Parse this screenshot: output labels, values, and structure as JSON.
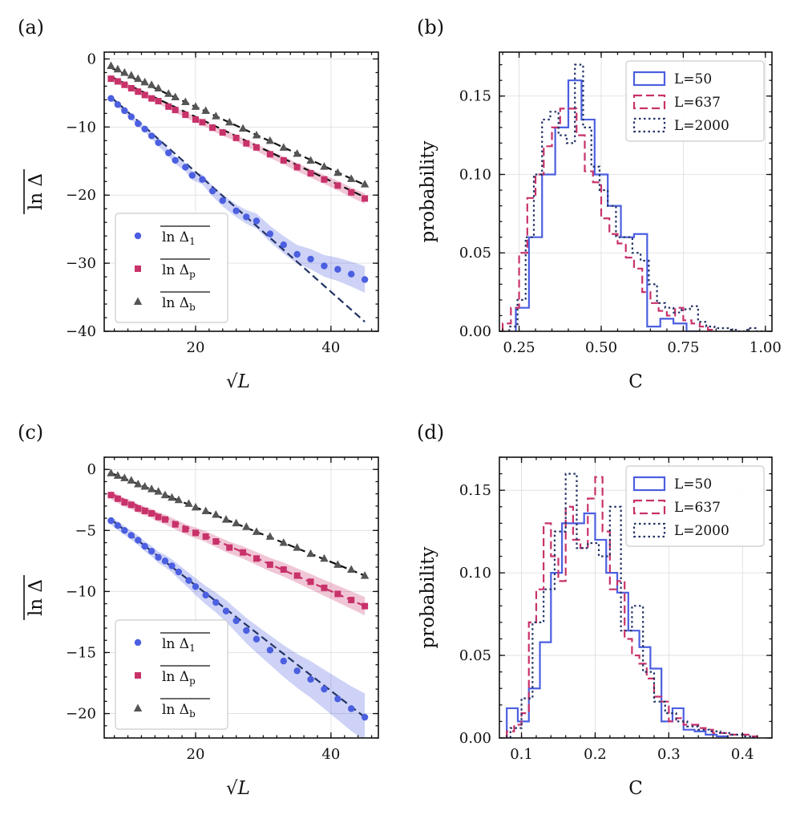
{
  "chart_data": [
    {
      "id": "a",
      "type": "scatter",
      "panel_label": "(a)",
      "xlabel": "√L",
      "ylabel": "ln Δ",
      "xlim": [
        6.5,
        47
      ],
      "ylim": [
        -40,
        1
      ],
      "xticks": [
        20,
        40
      ],
      "yticks": [
        0,
        -10,
        -20,
        -30,
        -40
      ],
      "xtick_labels": [
        "20",
        "40"
      ],
      "ytick_labels": [
        "0",
        "−10",
        "−20",
        "−30",
        "−40"
      ],
      "grid": true,
      "legend": "bottom-left",
      "series": [
        {
          "name": "ln Δ",
          "subscript": "1",
          "marker": "circle",
          "color": "#4b5fe0",
          "band": true,
          "fit": {
            "x": [
              7.5,
              45
            ],
            "y": [
              -5.6,
              -38.6
            ],
            "color": "#223366"
          },
          "x": [
            7.5,
            8.5,
            9.5,
            10.5,
            11.5,
            12.5,
            13.5,
            14.5,
            16,
            17,
            18.5,
            19.5,
            21,
            22.5,
            24,
            26,
            27.5,
            29,
            31,
            33,
            35,
            37,
            39,
            41,
            43,
            45
          ],
          "y": [
            -5.8,
            -6.7,
            -7.6,
            -8.5,
            -9.5,
            -10.3,
            -11.3,
            -12.3,
            -13.8,
            -14.9,
            -15.9,
            -17.1,
            -17.7,
            -19.4,
            -20.8,
            -22.3,
            -23.2,
            -23.8,
            -25.7,
            -27.3,
            -28.7,
            -29.4,
            -30.4,
            -30.9,
            -31.6,
            -32.4
          ]
        },
        {
          "name": "ln Δ",
          "subscript": "p",
          "marker": "square",
          "color": "#c8326a",
          "band": true,
          "fit": {
            "x": [
              7.5,
              45
            ],
            "y": [
              -2.6,
              -20.3
            ],
            "color": "#111111"
          },
          "x": [
            7.5,
            8.5,
            9.5,
            10.5,
            11.5,
            12.5,
            13.5,
            14.5,
            16,
            17,
            18.5,
            20,
            21,
            22.5,
            24,
            26,
            27.5,
            29,
            31,
            33,
            35,
            37,
            39,
            41,
            43,
            45
          ],
          "y": [
            -2.9,
            -3.3,
            -3.8,
            -4.3,
            -4.8,
            -5.3,
            -5.8,
            -6.2,
            -7.0,
            -7.5,
            -8.2,
            -8.9,
            -9.3,
            -10.1,
            -10.8,
            -11.6,
            -12.4,
            -13.0,
            -14.0,
            -14.9,
            -15.9,
            -16.8,
            -17.7,
            -18.6,
            -19.6,
            -20.5
          ]
        },
        {
          "name": "ln Δ",
          "subscript": "b",
          "marker": "triangle",
          "color": "#555555",
          "band": false,
          "fit": {
            "x": [
              7.5,
              45
            ],
            "y": [
              -1.3,
              -18.5
            ],
            "color": "#111111"
          },
          "x": [
            7.5,
            8.5,
            9.5,
            10.5,
            11.5,
            12.5,
            13.5,
            14.5,
            16,
            17,
            18.5,
            20,
            21.5,
            23,
            25,
            27,
            29,
            31,
            33,
            35,
            37,
            39,
            41,
            43,
            45
          ],
          "y": [
            -1.0,
            -1.5,
            -2.0,
            -2.4,
            -2.9,
            -3.4,
            -3.8,
            -4.3,
            -5.1,
            -5.6,
            -6.3,
            -7.0,
            -7.6,
            -8.4,
            -9.3,
            -10.2,
            -11.2,
            -12.0,
            -13.0,
            -13.9,
            -14.9,
            -15.8,
            -16.7,
            -17.6,
            -18.4
          ]
        }
      ]
    },
    {
      "id": "b",
      "type": "histogram",
      "panel_label": "(b)",
      "xlabel": "C",
      "ylabel": "probability",
      "xlim": [
        0.19,
        1.02
      ],
      "ylim": [
        0,
        0.178
      ],
      "xticks": [
        0.25,
        0.5,
        0.75,
        1.0
      ],
      "yticks": [
        0,
        0.05,
        0.1,
        0.15
      ],
      "xtick_labels": [
        "0.25",
        "0.50",
        "0.75",
        "1.00"
      ],
      "ytick_labels": [
        "0.00",
        "0.05",
        "0.10",
        "0.15"
      ],
      "grid": true,
      "legend": "top-right",
      "series": [
        {
          "name": "L=50",
          "style": "solid",
          "color": "#4b5fe0",
          "edges": [
            0.24,
            0.28,
            0.32,
            0.36,
            0.4,
            0.44,
            0.48,
            0.52,
            0.56,
            0.6,
            0.64,
            0.68,
            0.72,
            0.76,
            0.8
          ],
          "values": [
            0.015,
            0.06,
            0.1,
            0.13,
            0.16,
            0.135,
            0.1,
            0.08,
            0.06,
            0.062,
            0.003,
            0.008,
            0.005,
            0.0
          ]
        },
        {
          "name": "L=637",
          "style": "dashed",
          "color": "#c8326a",
          "edges": [
            0.2,
            0.225,
            0.25,
            0.275,
            0.3,
            0.325,
            0.35,
            0.375,
            0.4,
            0.425,
            0.45,
            0.475,
            0.5,
            0.525,
            0.55,
            0.575,
            0.6,
            0.625,
            0.65,
            0.675,
            0.7,
            0.725,
            0.75,
            0.775,
            0.8,
            0.825,
            0.85
          ],
          "values": [
            0.005,
            0.015,
            0.05,
            0.085,
            0.1,
            0.118,
            0.13,
            0.142,
            0.142,
            0.125,
            0.102,
            0.095,
            0.072,
            0.062,
            0.056,
            0.047,
            0.04,
            0.025,
            0.018,
            0.013,
            0.01,
            0.015,
            0.007,
            0.005,
            0.003,
            0.001
          ]
        },
        {
          "name": "L=2000",
          "style": "dotted",
          "color": "#223366",
          "edges": [
            0.22,
            0.245,
            0.27,
            0.295,
            0.32,
            0.345,
            0.37,
            0.395,
            0.42,
            0.445,
            0.47,
            0.495,
            0.52,
            0.545,
            0.57,
            0.595,
            0.62,
            0.645,
            0.67,
            0.695,
            0.72,
            0.745,
            0.77,
            0.795,
            0.82,
            0.845,
            0.87,
            0.895,
            0.92,
            0.945,
            0.97,
            0.995
          ],
          "values": [
            0.003,
            0.02,
            0.06,
            0.1,
            0.135,
            0.14,
            0.125,
            0.12,
            0.17,
            0.13,
            0.105,
            0.09,
            0.08,
            0.06,
            0.06,
            0.05,
            0.045,
            0.03,
            0.018,
            0.015,
            0.012,
            0.014,
            0.016,
            0.006,
            0.003,
            0.002,
            0.002,
            0.001,
            0.0,
            0.002,
            0.0
          ]
        }
      ]
    },
    {
      "id": "c",
      "type": "scatter",
      "panel_label": "(c)",
      "xlabel": "√L",
      "ylabel": "ln Δ",
      "xlim": [
        6.5,
        47
      ],
      "ylim": [
        -22,
        1
      ],
      "xticks": [
        20,
        40
      ],
      "yticks": [
        0,
        -5,
        -10,
        -15,
        -20
      ],
      "xtick_labels": [
        "20",
        "40"
      ],
      "ytick_labels": [
        "0",
        "−5",
        "−10",
        "−15",
        "−20"
      ],
      "grid": true,
      "legend": "bottom-left",
      "series": [
        {
          "name": "ln Δ",
          "subscript": "1",
          "marker": "circle",
          "color": "#4b5fe0",
          "band": true,
          "fit": {
            "x": [
              7.5,
              45
            ],
            "y": [
              -4.1,
              -20.3
            ],
            "color": "#223366"
          },
          "x": [
            7.5,
            8.5,
            9.5,
            10.5,
            11.5,
            12.5,
            13.5,
            14.5,
            15.5,
            16.5,
            17.5,
            19,
            20,
            21.5,
            23,
            24.5,
            26,
            27.5,
            29,
            31,
            33,
            35,
            37,
            39,
            41,
            43,
            45
          ],
          "y": [
            -4.2,
            -4.6,
            -5.0,
            -5.4,
            -5.8,
            -6.3,
            -6.7,
            -7.2,
            -7.5,
            -7.9,
            -8.4,
            -9.1,
            -9.6,
            -10.3,
            -10.9,
            -11.6,
            -12.4,
            -13.2,
            -13.9,
            -14.8,
            -15.7,
            -16.5,
            -17.2,
            -18.0,
            -18.8,
            -19.6,
            -20.3
          ]
        },
        {
          "name": "ln Δ",
          "subscript": "p",
          "marker": "square",
          "color": "#c8326a",
          "band": true,
          "fit": {
            "x": [
              7.5,
              45
            ],
            "y": [
              -2.0,
              -11.2
            ],
            "color": "#c8326a"
          },
          "x": [
            7.5,
            8.5,
            9.5,
            10.5,
            11.5,
            12.5,
            13.5,
            14.5,
            15.5,
            17,
            18.5,
            20,
            21.5,
            23,
            25,
            27,
            29,
            31,
            33,
            35,
            37,
            39,
            41,
            43,
            45
          ],
          "y": [
            -2.1,
            -2.4,
            -2.7,
            -2.9,
            -3.2,
            -3.4,
            -3.6,
            -3.9,
            -4.1,
            -4.5,
            -4.9,
            -5.2,
            -5.5,
            -5.9,
            -6.4,
            -6.8,
            -7.3,
            -7.8,
            -8.2,
            -8.7,
            -9.2,
            -9.7,
            -10.2,
            -10.7,
            -11.2
          ]
        },
        {
          "name": "ln Δ",
          "subscript": "b",
          "marker": "triangle",
          "color": "#555555",
          "band": false,
          "fit": {
            "x": [
              7.5,
              45
            ],
            "y": [
              -0.3,
              -8.7
            ],
            "color": "#111111"
          },
          "x": [
            7.5,
            8.5,
            9.5,
            10.5,
            11.5,
            12.5,
            13.5,
            14.5,
            15.5,
            16.5,
            17.5,
            19,
            20,
            21.5,
            23,
            24.5,
            26,
            27.5,
            29,
            31,
            33,
            35,
            37,
            39,
            41,
            43,
            45
          ],
          "y": [
            -0.3,
            -0.5,
            -0.7,
            -0.9,
            -1.2,
            -1.4,
            -1.6,
            -1.8,
            -2.1,
            -2.3,
            -2.5,
            -2.8,
            -3.1,
            -3.4,
            -3.7,
            -4.1,
            -4.4,
            -4.7,
            -5.1,
            -5.5,
            -6.0,
            -6.4,
            -6.9,
            -7.3,
            -7.8,
            -8.2,
            -8.7
          ]
        }
      ]
    },
    {
      "id": "d",
      "type": "histogram",
      "panel_label": "(d)",
      "xlabel": "C",
      "ylabel": "probability",
      "xlim": [
        0.07,
        0.44
      ],
      "ylim": [
        0,
        0.17
      ],
      "xticks": [
        0.1,
        0.2,
        0.3,
        0.4
      ],
      "yticks": [
        0,
        0.05,
        0.1,
        0.15
      ],
      "xtick_labels": [
        "0.1",
        "0.2",
        "0.3",
        "0.4"
      ],
      "ytick_labels": [
        "0.00",
        "0.05",
        "0.10",
        "0.15"
      ],
      "grid": true,
      "legend": "top-right",
      "series": [
        {
          "name": "L=50",
          "style": "solid",
          "color": "#4b5fe0",
          "edges": [
            0.08,
            0.095,
            0.11,
            0.125,
            0.14,
            0.155,
            0.17,
            0.185,
            0.2,
            0.215,
            0.23,
            0.245,
            0.26,
            0.275,
            0.29,
            0.305,
            0.32,
            0.335,
            0.35,
            0.365,
            0.38
          ],
          "values": [
            0.018,
            0.01,
            0.03,
            0.058,
            0.1,
            0.13,
            0.13,
            0.136,
            0.12,
            0.1,
            0.088,
            0.065,
            0.055,
            0.042,
            0.01,
            0.018,
            0.005,
            0.004,
            0.002,
            0.001
          ]
        },
        {
          "name": "L=637",
          "style": "dashed",
          "color": "#c8326a",
          "edges": [
            0.08,
            0.09,
            0.1,
            0.11,
            0.12,
            0.13,
            0.14,
            0.15,
            0.16,
            0.17,
            0.18,
            0.19,
            0.2,
            0.21,
            0.22,
            0.23,
            0.24,
            0.25,
            0.26,
            0.27,
            0.28,
            0.29,
            0.3,
            0.31,
            0.32,
            0.33,
            0.34,
            0.35,
            0.36,
            0.37,
            0.38,
            0.39,
            0.4,
            0.41,
            0.42
          ],
          "values": [
            0.004,
            0.008,
            0.015,
            0.07,
            0.09,
            0.13,
            0.11,
            0.095,
            0.14,
            0.12,
            0.115,
            0.145,
            0.158,
            0.125,
            0.09,
            0.095,
            0.06,
            0.05,
            0.045,
            0.036,
            0.025,
            0.022,
            0.01,
            0.012,
            0.008,
            0.008,
            0.006,
            0.005,
            0.003,
            0.003,
            0.002,
            0.002,
            0.002,
            0.001
          ]
        },
        {
          "name": "L=2000",
          "style": "dotted",
          "color": "#223366",
          "edges": [
            0.085,
            0.1,
            0.115,
            0.13,
            0.145,
            0.16,
            0.175,
            0.19,
            0.205,
            0.22,
            0.235,
            0.25,
            0.265,
            0.28,
            0.295,
            0.31,
            0.325,
            0.34,
            0.355,
            0.37,
            0.385,
            0.4,
            0.415
          ],
          "values": [
            0.006,
            0.024,
            0.07,
            0.09,
            0.125,
            0.16,
            0.115,
            0.118,
            0.11,
            0.14,
            0.065,
            0.08,
            0.04,
            0.022,
            0.015,
            0.01,
            0.007,
            0.005,
            0.004,
            0.003,
            0.002,
            0.001
          ]
        }
      ]
    }
  ]
}
